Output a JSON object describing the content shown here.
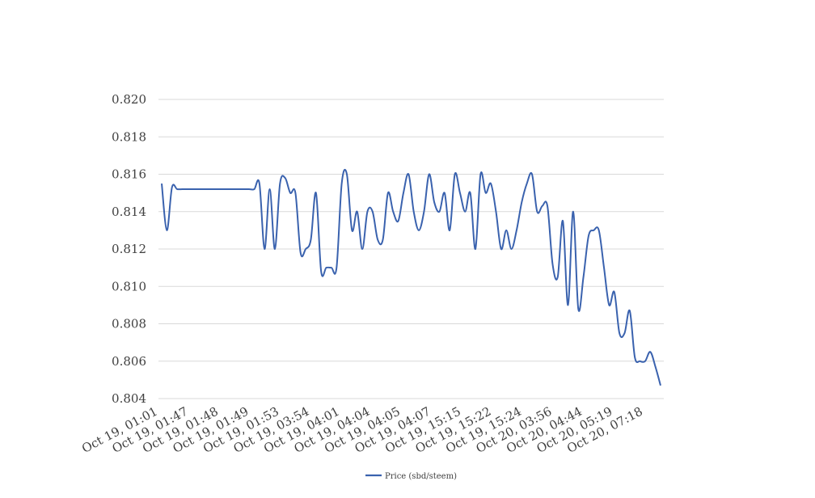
{
  "chart_data": {
    "type": "line",
    "title": "",
    "xlabel": "",
    "ylabel": "",
    "ylim": [
      0.804,
      0.82
    ],
    "yticks": [
      "0.804",
      "0.806",
      "0.808",
      "0.810",
      "0.812",
      "0.814",
      "0.816",
      "0.818",
      "0.820"
    ],
    "grid": "horizontal",
    "legend_position": "bottom",
    "x_tick_labels": [
      "Oct 19, 01:01",
      "Oct 19, 01:47",
      "Oct 19, 01:48",
      "Oct 19, 01:49",
      "Oct 19, 01:53",
      "Oct 19, 03:54",
      "Oct 19, 04:01",
      "Oct 19, 04:04",
      "Oct 19, 04:05",
      "Oct 19, 04:07",
      "Oct 19, 15:15",
      "Oct 19, 15:22",
      "Oct 19, 15:24",
      "Oct 20, 03:56",
      "Oct 20, 04:44",
      "Oct 20, 05:19",
      "Oct 20, 07:18"
    ],
    "series": [
      {
        "name": "Price (sbd/steem)",
        "color": "#3a62ae",
        "values": [
          0.8155,
          0.813,
          0.8153,
          0.8152,
          0.8152,
          0.8152,
          0.8152,
          0.8152,
          0.8152,
          0.8152,
          0.8152,
          0.8152,
          0.8152,
          0.8152,
          0.8152,
          0.8152,
          0.8152,
          0.8152,
          0.8152,
          0.8155,
          0.812,
          0.8152,
          0.812,
          0.8155,
          0.8158,
          0.815,
          0.815,
          0.8118,
          0.812,
          0.8125,
          0.815,
          0.8108,
          0.811,
          0.811,
          0.811,
          0.8155,
          0.816,
          0.813,
          0.814,
          0.812,
          0.814,
          0.814,
          0.8125,
          0.8125,
          0.815,
          0.814,
          0.8135,
          0.815,
          0.816,
          0.814,
          0.813,
          0.814,
          0.816,
          0.8145,
          0.814,
          0.815,
          0.813,
          0.816,
          0.815,
          0.814,
          0.815,
          0.812,
          0.816,
          0.815,
          0.8155,
          0.814,
          0.812,
          0.813,
          0.812,
          0.813,
          0.8145,
          0.8155,
          0.816,
          0.814,
          0.8143,
          0.8143,
          0.8112,
          0.8105,
          0.8135,
          0.809,
          0.814,
          0.8088,
          0.8105,
          0.8127,
          0.813,
          0.813,
          0.811,
          0.809,
          0.8097,
          0.8075,
          0.8075,
          0.8087,
          0.8062,
          0.806,
          0.806,
          0.8065,
          0.8057,
          0.8047
        ]
      }
    ]
  }
}
